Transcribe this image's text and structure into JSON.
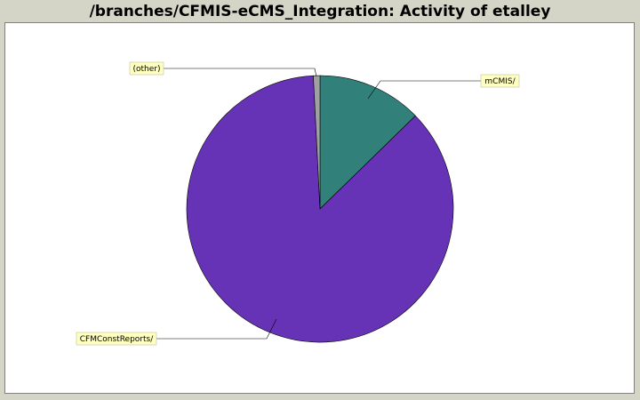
{
  "title": "/branches/CFMIS-eCMS_Integration: Activity of etalley",
  "chart_data": {
    "type": "pie",
    "slices": [
      {
        "label": "mCMIS/",
        "value": 12.7,
        "color": "#31817a"
      },
      {
        "label": "CFMConstReports/",
        "value": 86.5,
        "color": "#6633b7"
      },
      {
        "label": "(other)",
        "value": 0.8,
        "color": "#a0a0a0"
      }
    ],
    "start_angle_deg": 0,
    "direction": "clockwise"
  }
}
